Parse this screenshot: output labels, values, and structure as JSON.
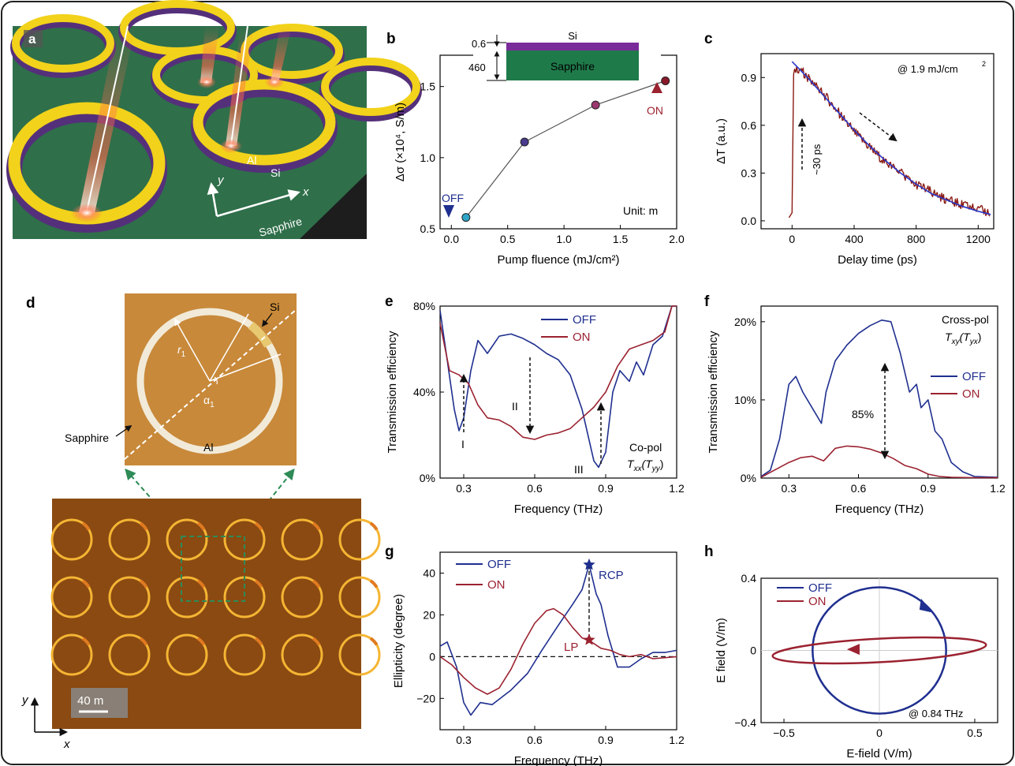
{
  "colors": {
    "off": "#1f2f8f",
    "on": "#9b2230",
    "pump_beam": "#ff6a4d",
    "substrate": "#2f6f4a",
    "aluminum": "#f2d21a",
    "silicon": "#55307a",
    "sapphire_box": "#1f7a4a",
    "si_layer": "#7a2b9a",
    "measured_trace": "#8a1a12",
    "fit_line": "#2a36c8",
    "microscope_bg": "#8a4a12",
    "inset_bg": "#c8893a",
    "zoom_box": "#2e8b57"
  },
  "panels": {
    "a": {
      "letter": "a",
      "labels": {
        "al": "Al",
        "si": "Si",
        "sapphire": "Sapphire",
        "x": "x",
        "y": "y"
      }
    },
    "b": {
      "letter": "b",
      "inset": {
        "si": "Si",
        "sapphire": "Sapphire",
        "dim_top": "0.6",
        "dim_bottom": "460"
      },
      "off_label": "OFF",
      "on_label": "ON",
      "unit_label": "Unit:   m"
    },
    "c": {
      "letter": "c",
      "annotation": "@ 1.9 mJ/cm",
      "superscript": "2",
      "rise_label": "~30 ps"
    },
    "d": {
      "letter": "d",
      "labels": {
        "si": "Si",
        "al": "Al",
        "sapphire": "Sapphire",
        "r1": "r",
        "r1_sub": "1",
        "alpha1": "α",
        "alpha1_sub": "1",
        "x": "x",
        "y": "y"
      },
      "scale_bar": "40   m"
    },
    "e": {
      "letter": "e",
      "region_1": "I",
      "region_2": "II",
      "region_3": "III",
      "copol_1": "Co-pol",
      "copol_2": "T",
      "copol_sub": "xx",
      "copol_paren": "(T",
      "copol_sub2": "yy",
      "copol_close": ")"
    },
    "f": {
      "letter": "f",
      "crosspol_1": "Cross-pol",
      "crosspol_2": "T",
      "crosspol_sub": "xy",
      "crosspol_paren": "(T",
      "crosspol_sub2": "yx",
      "crosspol_close": ")",
      "pct": "85%"
    },
    "g": {
      "letter": "g",
      "rcp": "RCP",
      "lp": "LP"
    },
    "h": {
      "letter": "h",
      "annotation": "@ 0.84 THz"
    }
  },
  "chart_data": [
    {
      "panel": "b",
      "type": "scatter",
      "xlabel": "Pump fluence (mJ/cm²)",
      "ylabel": "Δσ (×10⁴, S/m)",
      "xlim": [
        -0.1,
        2.0
      ],
      "ylim": [
        0.5,
        1.72
      ],
      "xticks": [
        "0.0",
        "0.5",
        "1.0",
        "1.5",
        "2.0"
      ],
      "yticks": [
        "0.5",
        "1.0",
        "1.5"
      ],
      "x": [
        0.13,
        0.65,
        1.28,
        1.9
      ],
      "y": [
        0.58,
        1.11,
        1.37,
        1.54
      ],
      "point_colors": [
        "#2fa4c7",
        "#4a3a8c",
        "#9b3870",
        "#8a1a2a"
      ]
    },
    {
      "panel": "c",
      "type": "line",
      "xlabel": "Delay time (ps)",
      "ylabel": "ΔT (a.u.)",
      "xlim": [
        -200,
        1300
      ],
      "ylim": [
        -0.05,
        1.05
      ],
      "xticks": [
        "0",
        "400",
        "800",
        "1200"
      ],
      "yticks": [
        "0.0",
        "0.3",
        "0.6",
        "0.9"
      ],
      "measured_x": [
        -20,
        0,
        10,
        30,
        60,
        100,
        150,
        200,
        300,
        400,
        500,
        600,
        700,
        800,
        900,
        1000,
        1100,
        1200,
        1280
      ],
      "measured_y": [
        0.02,
        0.05,
        0.94,
        0.96,
        0.95,
        0.9,
        0.86,
        0.8,
        0.68,
        0.56,
        0.46,
        0.37,
        0.3,
        0.23,
        0.18,
        0.13,
        0.1,
        0.07,
        0.05
      ],
      "fit_x": [
        0,
        100,
        200,
        300,
        400,
        500,
        600,
        700,
        800,
        900,
        1000,
        1100,
        1200,
        1280
      ],
      "fit_y": [
        1.0,
        0.9,
        0.79,
        0.68,
        0.57,
        0.47,
        0.38,
        0.3,
        0.23,
        0.17,
        0.13,
        0.09,
        0.06,
        0.04
      ]
    },
    {
      "panel": "e",
      "type": "line",
      "xlabel": "Frequency (THz)",
      "ylabel": "Transmission efficiency",
      "xlim": [
        0.2,
        1.2
      ],
      "ylim": [
        0,
        80
      ],
      "xticks": [
        "0.3",
        "0.6",
        "0.9",
        "1.2"
      ],
      "yticks": [
        "0%",
        "40%",
        "80%"
      ],
      "series": [
        {
          "name": "OFF",
          "x": [
            0.2,
            0.23,
            0.26,
            0.28,
            0.3,
            0.33,
            0.36,
            0.4,
            0.45,
            0.5,
            0.55,
            0.6,
            0.65,
            0.7,
            0.75,
            0.8,
            0.85,
            0.87,
            0.9,
            0.93,
            0.96,
            1.0,
            1.03,
            1.06,
            1.1,
            1.14,
            1.18,
            1.2
          ],
          "y": [
            78,
            55,
            32,
            22,
            28,
            50,
            64,
            58,
            66,
            67,
            65,
            62,
            58,
            55,
            48,
            32,
            8,
            5,
            12,
            40,
            50,
            45,
            54,
            48,
            62,
            66,
            80,
            80
          ]
        },
        {
          "name": "ON",
          "x": [
            0.2,
            0.24,
            0.28,
            0.32,
            0.36,
            0.4,
            0.45,
            0.5,
            0.55,
            0.6,
            0.65,
            0.7,
            0.75,
            0.8,
            0.85,
            0.9,
            0.95,
            1.0,
            1.05,
            1.1,
            1.15,
            1.18,
            1.2
          ],
          "y": [
            72,
            50,
            48,
            44,
            34,
            28,
            27,
            24,
            19,
            18,
            20,
            21,
            23,
            28,
            33,
            40,
            52,
            60,
            62,
            64,
            68,
            80,
            80
          ]
        }
      ]
    },
    {
      "panel": "f",
      "type": "line",
      "xlabel": "Frequency (THz)",
      "ylabel": "Transmission efficiency",
      "xlim": [
        0.18,
        1.2
      ],
      "ylim": [
        0,
        22
      ],
      "xticks": [
        "0.3",
        "0.6",
        "0.9",
        "1.2"
      ],
      "yticks": [
        "0%",
        "10%",
        "20%"
      ],
      "series": [
        {
          "name": "OFF",
          "x": [
            0.18,
            0.22,
            0.26,
            0.3,
            0.33,
            0.36,
            0.4,
            0.44,
            0.46,
            0.5,
            0.55,
            0.6,
            0.65,
            0.7,
            0.74,
            0.78,
            0.82,
            0.85,
            0.87,
            0.9,
            0.93,
            0.96,
            1.0,
            1.05,
            1.1,
            1.2
          ],
          "y": [
            0.2,
            1,
            5,
            12,
            13,
            11,
            9,
            7,
            11,
            15,
            17,
            18.5,
            19.5,
            20.2,
            20,
            16,
            11,
            12,
            9,
            10,
            6,
            5,
            2,
            0.8,
            0.2,
            0.1
          ]
        },
        {
          "name": "ON",
          "x": [
            0.18,
            0.25,
            0.3,
            0.35,
            0.4,
            0.45,
            0.5,
            0.55,
            0.6,
            0.65,
            0.7,
            0.75,
            0.8,
            0.85,
            0.9,
            0.95,
            1.0,
            1.1,
            1.2
          ],
          "y": [
            0.1,
            1.2,
            2,
            2.6,
            2.8,
            2.2,
            3.8,
            4.1,
            4.0,
            3.7,
            3.2,
            2.5,
            1.6,
            1.2,
            0.5,
            0.2,
            0.1,
            0.05,
            0.05
          ]
        }
      ]
    },
    {
      "panel": "g",
      "type": "line",
      "xlabel": "Frequency (THz)",
      "ylabel": "Ellipticity (degree)",
      "xlim": [
        0.2,
        1.2
      ],
      "ylim": [
        -35,
        50
      ],
      "xticks": [
        "0.3",
        "0.6",
        "0.9",
        "1.2"
      ],
      "yticks": [
        "-20",
        "0",
        "20",
        "40"
      ],
      "series": [
        {
          "name": "OFF",
          "x": [
            0.2,
            0.23,
            0.27,
            0.3,
            0.33,
            0.37,
            0.42,
            0.5,
            0.57,
            0.63,
            0.7,
            0.76,
            0.8,
            0.83,
            0.86,
            0.88,
            0.91,
            0.95,
            1.0,
            1.05,
            1.1,
            1.15,
            1.2
          ],
          "y": [
            5,
            7,
            -5,
            -22,
            -28,
            -22,
            -23,
            -16,
            -8,
            3,
            15,
            25,
            32,
            44,
            30,
            25,
            10,
            -5,
            -5,
            -1,
            2,
            2,
            3
          ]
        },
        {
          "name": "ON",
          "x": [
            0.2,
            0.25,
            0.3,
            0.35,
            0.4,
            0.45,
            0.5,
            0.55,
            0.6,
            0.65,
            0.68,
            0.72,
            0.76,
            0.8,
            0.84,
            0.88,
            0.92,
            0.96,
            1.0,
            1.05,
            1.1,
            1.2
          ],
          "y": [
            0,
            -4,
            -10,
            -15,
            -18,
            -15,
            -6,
            6,
            16,
            22,
            23,
            20,
            14,
            9,
            7,
            4,
            3,
            1,
            0,
            1,
            -1,
            0
          ]
        }
      ],
      "markers": [
        {
          "label": "RCP",
          "x": 0.83,
          "y": 44
        },
        {
          "label": "LP",
          "x": 0.83,
          "y": 8
        }
      ]
    },
    {
      "panel": "h",
      "type": "line",
      "xlabel": "E-field (V/m)",
      "ylabel": "E field (V/m)",
      "xlim": [
        -0.62,
        0.62
      ],
      "ylim": [
        -0.4,
        0.4
      ],
      "xticks": [
        "-0.5",
        "0",
        "0.5"
      ],
      "yticks": [
        "-0.4",
        "0",
        "0.4"
      ],
      "series": [
        {
          "name": "OFF",
          "shape": "ellipse",
          "semi_x": 0.35,
          "semi_y": 0.35,
          "tilt_deg": 0
        },
        {
          "name": "ON",
          "shape": "ellipse",
          "semi_x": 0.56,
          "semi_y": 0.065,
          "tilt_deg": -3
        }
      ]
    }
  ]
}
